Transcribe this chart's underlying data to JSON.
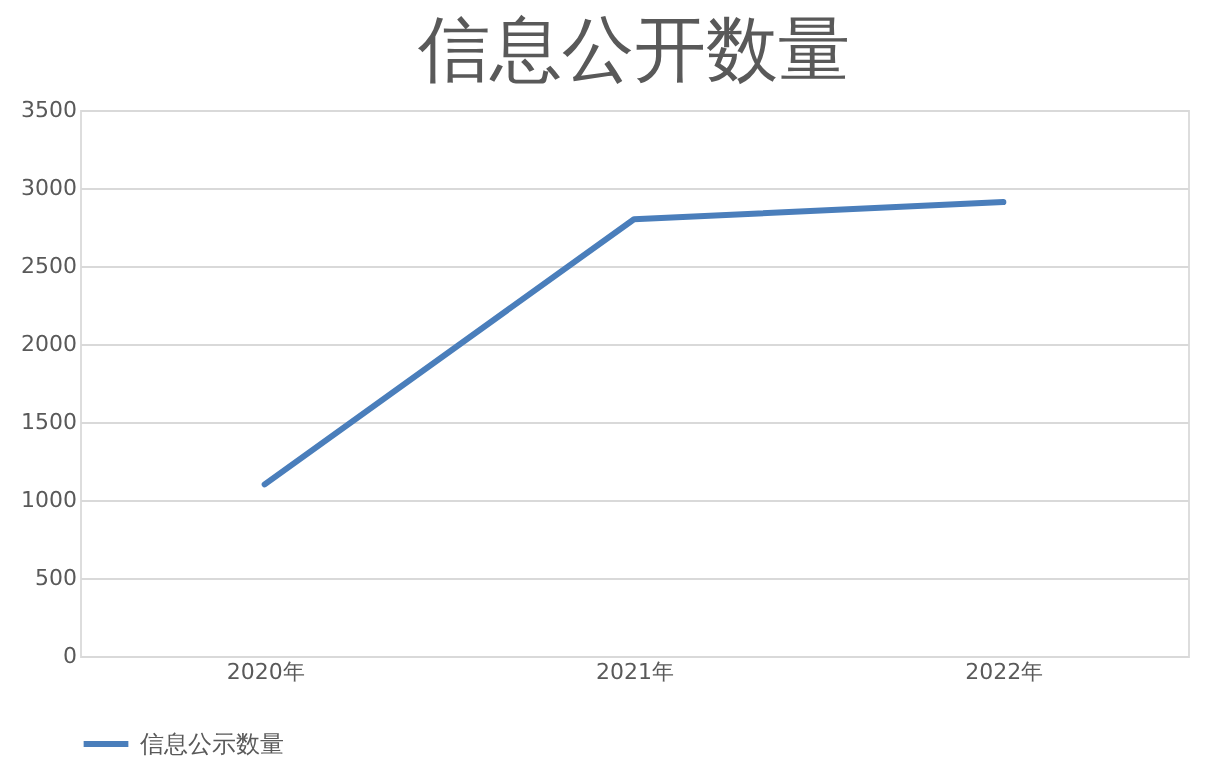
{
  "chart_data": {
    "type": "line",
    "title": "信息公开数量",
    "categories": [
      "2020年",
      "2021年",
      "2022年"
    ],
    "series": [
      {
        "name": "信息公示数量",
        "color": "#4a7ebb",
        "values": [
          1100,
          2800,
          2910
        ]
      }
    ],
    "ylim": [
      0,
      3500
    ],
    "yticks": [
      0,
      500,
      1000,
      1500,
      2000,
      2500,
      3000,
      3500
    ],
    "grid": "y",
    "legend": "bottom",
    "marker": "none",
    "line_style": "solid"
  }
}
